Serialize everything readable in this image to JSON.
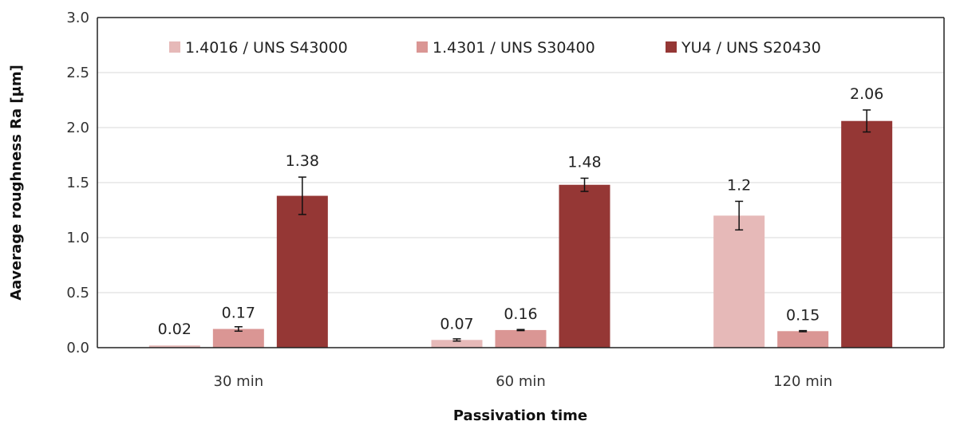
{
  "chart_data": {
    "type": "bar",
    "title": "",
    "xlabel": "Passivation time",
    "ylabel": "Aaverage roughness Ra [μm]",
    "ylim": [
      0,
      3.0
    ],
    "yticks": [
      "0.0",
      "0.5",
      "1.0",
      "1.5",
      "2.0",
      "2.5",
      "3.0"
    ],
    "grid": true,
    "legend_position": "top",
    "categories": [
      "30 min",
      "60 min",
      "120 min"
    ],
    "series": [
      {
        "name": "1.4016 / UNS S43000",
        "color": "#e6b9b8",
        "values": [
          0.02,
          0.07,
          1.2
        ],
        "labels": [
          "0.02",
          "0.07",
          "1.2"
        ],
        "errors": [
          0,
          0.01,
          0.13
        ]
      },
      {
        "name": "1.4301 / UNS S30400",
        "color": "#da9694",
        "values": [
          0.17,
          0.16,
          0.15
        ],
        "labels": [
          "0.17",
          "0.16",
          "0.15"
        ],
        "errors": [
          0.02,
          0.005,
          0.005
        ]
      },
      {
        "name": "YU4 / UNS S20430",
        "color": "#953735",
        "values": [
          1.38,
          1.48,
          2.06
        ],
        "labels": [
          "1.38",
          "1.48",
          "2.06"
        ],
        "errors": [
          0.17,
          0.06,
          0.1
        ]
      }
    ]
  }
}
